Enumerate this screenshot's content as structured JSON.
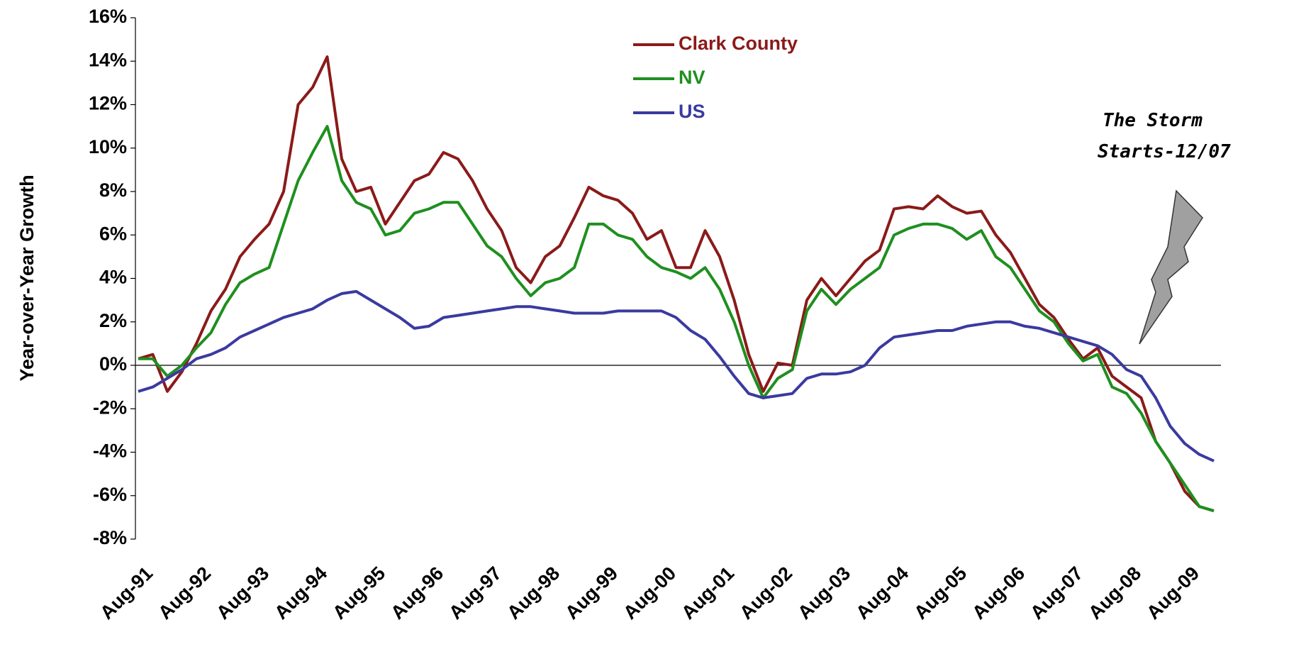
{
  "chart_data": {
    "type": "line",
    "y_label": "Year-over-Year Growth",
    "annotation": [
      "The Storm",
      "Starts-12/07"
    ],
    "categories": [
      "Aug-91",
      null,
      null,
      null,
      "Aug-92",
      null,
      null,
      null,
      "Aug-93",
      null,
      null,
      null,
      "Aug-94",
      null,
      null,
      null,
      "Aug-95",
      null,
      null,
      null,
      "Aug-96",
      null,
      null,
      null,
      "Aug-97",
      null,
      null,
      null,
      "Aug-98",
      null,
      null,
      null,
      "Aug-99",
      null,
      null,
      null,
      "Aug-00",
      null,
      null,
      null,
      "Aug-01",
      null,
      null,
      null,
      "Aug-02",
      null,
      null,
      null,
      "Aug-03",
      null,
      null,
      null,
      "Aug-04",
      null,
      null,
      null,
      "Aug-05",
      null,
      null,
      null,
      "Aug-06",
      null,
      null,
      null,
      "Aug-07",
      null,
      null,
      null,
      "Aug-08",
      null,
      null,
      null,
      "Aug-09",
      null,
      null
    ],
    "series": [
      {
        "name": "Clark County",
        "color": "#8b1a1a",
        "values": [
          0.3,
          0.5,
          -1.2,
          -0.3,
          1.0,
          2.5,
          3.5,
          5.0,
          5.8,
          6.5,
          8.0,
          12.0,
          12.8,
          14.2,
          9.5,
          8.0,
          8.2,
          6.5,
          7.5,
          8.5,
          8.8,
          9.8,
          9.5,
          8.5,
          7.2,
          6.2,
          4.5,
          3.8,
          5.0,
          5.5,
          6.8,
          8.2,
          7.8,
          7.6,
          7.0,
          5.8,
          6.2,
          4.5,
          4.5,
          6.2,
          5.0,
          3.0,
          0.5,
          -1.2,
          0.1,
          0.0,
          3.0,
          4.0,
          3.2,
          4.0,
          4.8,
          5.3,
          7.2,
          7.3,
          7.2,
          7.8,
          7.3,
          7.0,
          7.1,
          6.0,
          5.2,
          4.0,
          2.8,
          2.2,
          1.2,
          0.3,
          0.8,
          -0.5,
          -1.0,
          -1.5,
          -3.5,
          -4.5,
          -5.8,
          -6.5,
          -6.7
        ]
      },
      {
        "name": "NV",
        "color": "#1f8f1f",
        "values": [
          0.3,
          0.3,
          -0.5,
          0.0,
          0.8,
          1.5,
          2.8,
          3.8,
          4.2,
          4.5,
          6.5,
          8.5,
          9.8,
          11.0,
          8.5,
          7.5,
          7.2,
          6.0,
          6.2,
          7.0,
          7.2,
          7.5,
          7.5,
          6.5,
          5.5,
          5.0,
          4.0,
          3.2,
          3.8,
          4.0,
          4.5,
          6.5,
          6.5,
          6.0,
          5.8,
          5.0,
          4.5,
          4.3,
          4.0,
          4.5,
          3.5,
          2.0,
          0.0,
          -1.5,
          -0.6,
          -0.2,
          2.5,
          3.5,
          2.8,
          3.5,
          4.0,
          4.5,
          6.0,
          6.3,
          6.5,
          6.5,
          6.3,
          5.8,
          6.2,
          5.0,
          4.5,
          3.5,
          2.5,
          2.0,
          1.0,
          0.2,
          0.5,
          -1.0,
          -1.3,
          -2.2,
          -3.5,
          -4.5,
          -5.5,
          -6.5,
          -6.7
        ]
      },
      {
        "name": "US",
        "color": "#3a3aa0",
        "values": [
          -1.2,
          -1.0,
          -0.6,
          -0.2,
          0.3,
          0.5,
          0.8,
          1.3,
          1.6,
          1.9,
          2.2,
          2.4,
          2.6,
          3.0,
          3.3,
          3.4,
          3.0,
          2.6,
          2.2,
          1.7,
          1.8,
          2.2,
          2.3,
          2.4,
          2.5,
          2.6,
          2.7,
          2.7,
          2.6,
          2.5,
          2.4,
          2.4,
          2.4,
          2.5,
          2.5,
          2.5,
          2.5,
          2.2,
          1.6,
          1.2,
          0.4,
          -0.5,
          -1.3,
          -1.5,
          -1.4,
          -1.3,
          -0.6,
          -0.4,
          -0.4,
          -0.3,
          0.0,
          0.8,
          1.3,
          1.4,
          1.5,
          1.6,
          1.6,
          1.8,
          1.9,
          2.0,
          2.0,
          1.8,
          1.7,
          1.5,
          1.3,
          1.1,
          0.9,
          0.5,
          -0.2,
          -0.5,
          -1.5,
          -2.8,
          -3.6,
          -4.1,
          -4.4
        ]
      }
    ],
    "ylim": [
      -8,
      16
    ],
    "yticks": [
      {
        "value": -8,
        "label": "-8%"
      },
      {
        "value": -6,
        "label": "-6%"
      },
      {
        "value": -4,
        "label": "-4%"
      },
      {
        "value": -2,
        "label": "-2%"
      },
      {
        "value": 0,
        "label": "0%"
      },
      {
        "value": 2,
        "label": "2%"
      },
      {
        "value": 4,
        "label": "4%"
      },
      {
        "value": 6,
        "label": "6%"
      },
      {
        "value": 8,
        "label": "8%"
      },
      {
        "value": 10,
        "label": "10%"
      },
      {
        "value": 12,
        "label": "12%"
      },
      {
        "value": 14,
        "label": "14%"
      },
      {
        "value": 16,
        "label": "16%"
      }
    ],
    "zero_line": true
  }
}
